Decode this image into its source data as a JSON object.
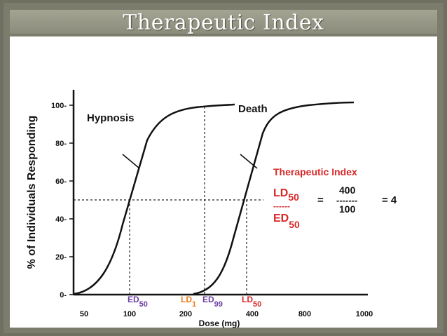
{
  "slide": {
    "title": "Therapeutic Index",
    "theme_bg": "#7c7c6d"
  },
  "chart_data": {
    "type": "line",
    "xlabel": "Dose (mg)",
    "ylabel": "% of Individuals Responding",
    "x_ticks": [
      "50",
      "100",
      "200",
      "400",
      "800",
      "1000"
    ],
    "y_ticks": [
      "0",
      "20",
      "40",
      "60",
      "80",
      "100"
    ],
    "ylim": [
      0,
      100
    ],
    "grid": false,
    "series": [
      {
        "name": "Hypnosis",
        "x": [
          "50",
          "100",
          "200"
        ],
        "values": [
          0,
          50,
          100
        ]
      },
      {
        "name": "Death",
        "x": [
          "200",
          "400",
          "800"
        ],
        "values": [
          0,
          50,
          100
        ]
      }
    ],
    "markers": [
      {
        "base": "ED",
        "sub": "50",
        "x": "100",
        "color": "#6b3fa0"
      },
      {
        "base": "LD",
        "sub": "1",
        "x": "200",
        "color": "#f07a1a"
      },
      {
        "base": "ED",
        "sub": "99",
        "x": "200",
        "color": "#6b3fa0"
      },
      {
        "base": "LD",
        "sub": "50",
        "x": "400",
        "color": "#d72828"
      }
    ],
    "annotation": {
      "heading": "Therapeutic Index",
      "num_base": "LD",
      "num_sub": "50",
      "den_base": "ED",
      "den_sub": "50",
      "equals": "=",
      "top_value": "400",
      "dashes": "-------",
      "frac_dashes": "------",
      "bottom_value": "100",
      "result": "= 4",
      "color": "#d72828"
    }
  }
}
